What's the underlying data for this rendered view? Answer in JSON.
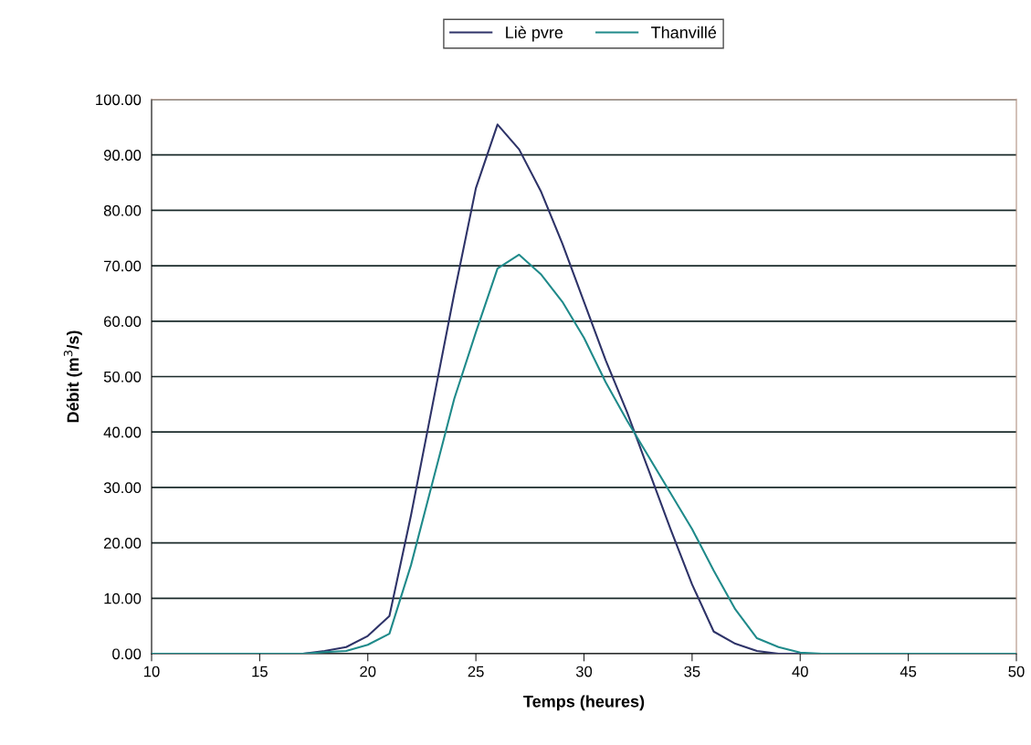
{
  "chart_data": {
    "type": "line",
    "xlabel": "Temps (heures)",
    "ylabel": "Débit (m$^{3}$/s)",
    "x": [
      10,
      11,
      12,
      13,
      14,
      15,
      16,
      17,
      18,
      19,
      20,
      21,
      22,
      23,
      24,
      25,
      26,
      27,
      28,
      29,
      30,
      31,
      32,
      33,
      34,
      35,
      36,
      37,
      38,
      39,
      40,
      41,
      42,
      43,
      44,
      45,
      46,
      47,
      48,
      49,
      50
    ],
    "series": [
      {
        "name": "Liè pvre",
        "color": "#2e3368",
        "values": [
          0,
          0,
          0,
          0,
          0,
          0,
          0,
          0,
          0.5,
          1.2,
          3.2,
          6.8,
          25,
          45,
          65,
          84,
          95.5,
          91,
          83.5,
          74,
          63.5,
          53,
          43.5,
          33,
          22.5,
          12.5,
          4,
          1.8,
          0.5,
          0,
          0,
          0,
          0,
          0,
          0,
          0,
          0,
          0,
          0,
          0,
          0
        ]
      },
      {
        "name": "Thanvillé",
        "color": "#1f8a8a",
        "values": [
          0,
          0,
          0,
          0,
          0,
          0,
          0,
          0,
          0.3,
          0.5,
          1.6,
          3.6,
          16,
          31,
          46,
          58,
          69.5,
          72,
          68.5,
          63.5,
          57,
          49,
          42,
          35.5,
          29,
          22.5,
          15,
          8,
          2.8,
          1.2,
          0.2,
          0,
          0,
          0,
          0,
          0,
          0,
          0,
          0,
          0,
          0
        ]
      }
    ],
    "xlim": [
      10,
      50
    ],
    "xticks": [
      10,
      15,
      20,
      25,
      30,
      35,
      40,
      45,
      50
    ],
    "ylim": [
      0,
      100
    ],
    "yticks": [
      {
        "value": 0,
        "label": "0.00"
      },
      {
        "value": 10,
        "label": "10.00"
      },
      {
        "value": 20,
        "label": "20.00"
      },
      {
        "value": 30,
        "label": "30.00"
      },
      {
        "value": 40,
        "label": "40.00"
      },
      {
        "value": 50,
        "label": "50.00"
      },
      {
        "value": 60,
        "label": "60.00"
      },
      {
        "value": 70,
        "label": "70.00"
      },
      {
        "value": 80,
        "label": "80.00"
      },
      {
        "value": 90,
        "label": "90.00"
      },
      {
        "value": 100,
        "label": "100.00"
      }
    ],
    "grid": "y",
    "legend": "top",
    "marker": "none",
    "line_style": "solid"
  }
}
